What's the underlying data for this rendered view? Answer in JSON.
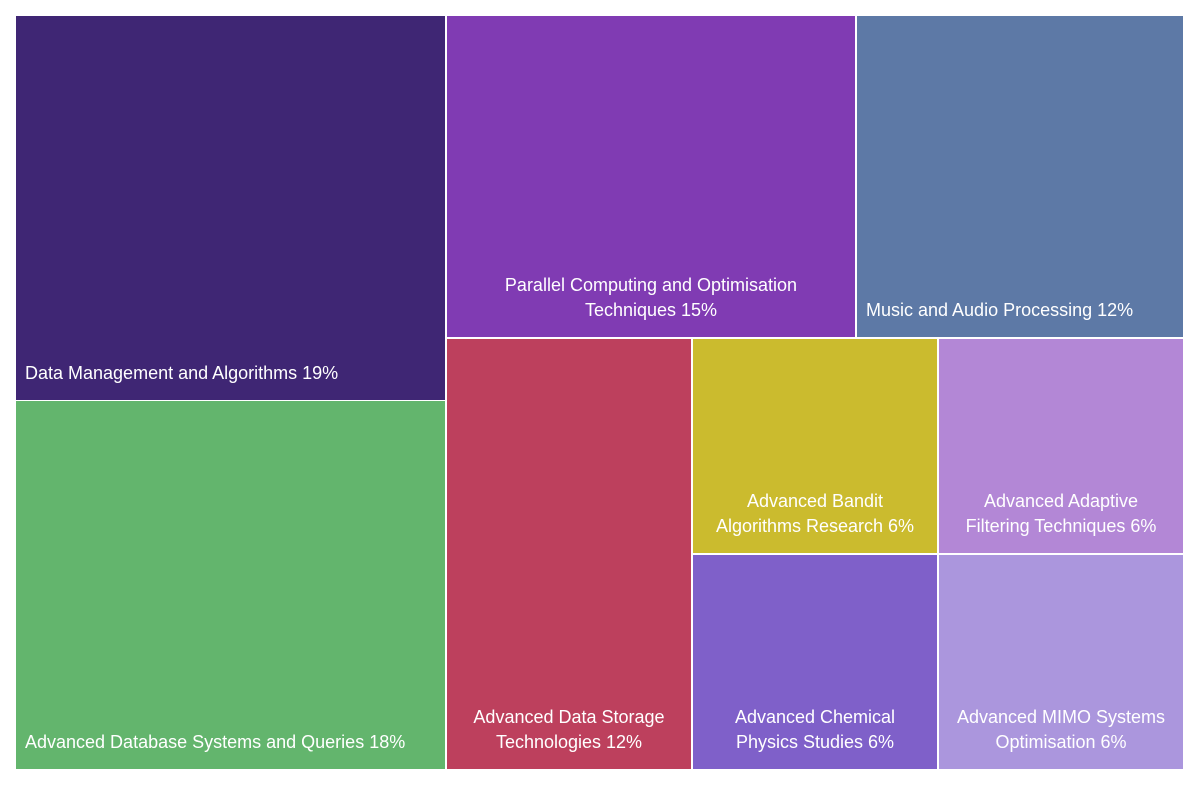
{
  "chart_data": {
    "type": "treemap",
    "title": "",
    "unit": "%",
    "tiles": [
      {
        "id": "data-management",
        "label": "Data Management and Algorithms",
        "value": 19,
        "color": "#3f2674"
      },
      {
        "id": "advanced-database",
        "label": "Advanced Database Systems and Queries",
        "value": 18,
        "color": "#63b56d"
      },
      {
        "id": "parallel-computing",
        "label": "Parallel Computing and Optimisation Techniques",
        "value": 15,
        "color": "#803bb3"
      },
      {
        "id": "music-audio",
        "label": "Music and Audio Processing",
        "value": 12,
        "color": "#5d79a6"
      },
      {
        "id": "data-storage",
        "label": "Advanced Data Storage Technologies",
        "value": 12,
        "color": "#bd405d"
      },
      {
        "id": "bandit",
        "label": "Advanced Bandit Algorithms Research",
        "value": 6,
        "color": "#cbbb2e"
      },
      {
        "id": "adaptive-filtering",
        "label": "Advanced Adaptive Filtering Techniques",
        "value": 6,
        "color": "#b387d6"
      },
      {
        "id": "chemical-physics",
        "label": "Advanced Chemical Physics Studies",
        "value": 6,
        "color": "#7f60c9"
      },
      {
        "id": "mimo",
        "label": "Advanced MIMO Systems Optimisation",
        "value": 6,
        "color": "#ab96dd"
      }
    ]
  }
}
